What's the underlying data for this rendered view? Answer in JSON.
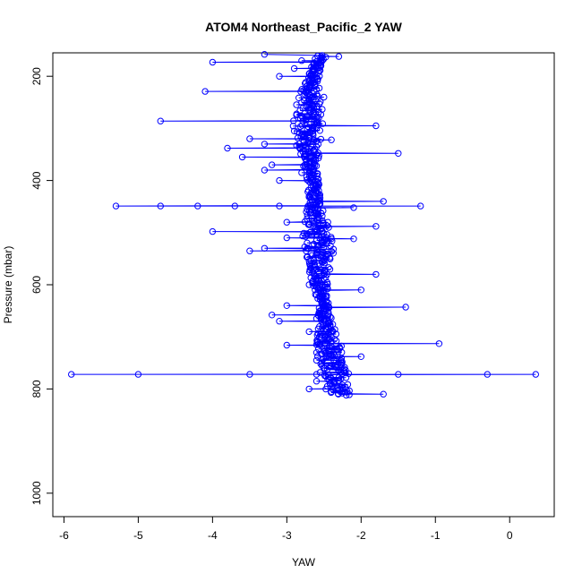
{
  "chart_data": {
    "type": "scatter",
    "title": "ATOM4 Northeast_Pacific_2 YAW",
    "xlabel": "YAW",
    "ylabel": "Pressure (mbar)",
    "xlim": [
      -6.15,
      0.6
    ],
    "ylim": [
      1045,
      155
    ],
    "y_reversed": true,
    "grid": false,
    "x_ticks": [
      -6,
      -5,
      -4,
      -3,
      -2,
      -1,
      0
    ],
    "y_ticks": [
      200,
      400,
      600,
      800,
      1000
    ],
    "color": "#0000ff",
    "series": [
      {
        "style": "line+circle-markers",
        "points": [
          [
            -2.3,
            162
          ],
          [
            -3.3,
            158
          ],
          [
            -4.0,
            173
          ],
          [
            -2.8,
            170
          ],
          [
            -2.6,
            180
          ],
          [
            -2.9,
            185
          ],
          [
            -4.1,
            229
          ],
          [
            -3.1,
            200
          ],
          [
            -2.7,
            210
          ],
          [
            -2.6,
            225
          ],
          [
            -2.5,
            240
          ],
          [
            -2.7,
            255
          ],
          [
            -4.7,
            286
          ],
          [
            -2.6,
            286
          ],
          [
            -1.8,
            295
          ],
          [
            -2.6,
            300
          ],
          [
            -2.9,
            305
          ],
          [
            -2.7,
            318
          ],
          [
            -3.5,
            320
          ],
          [
            -2.4,
            322
          ],
          [
            -3.3,
            330
          ],
          [
            -2.6,
            335
          ],
          [
            -3.8,
            338
          ],
          [
            -2.7,
            345
          ],
          [
            -1.5,
            348
          ],
          [
            -2.6,
            350
          ],
          [
            -3.6,
            355
          ],
          [
            -3.2,
            370
          ],
          [
            -2.6,
            372
          ],
          [
            -3.3,
            380
          ],
          [
            -2.8,
            385
          ],
          [
            -3.1,
            400
          ],
          [
            -2.6,
            410
          ],
          [
            -2.7,
            430
          ],
          [
            -1.7,
            440
          ],
          [
            -2.6,
            445
          ],
          [
            -5.3,
            449
          ],
          [
            -4.7,
            449
          ],
          [
            -4.2,
            449
          ],
          [
            -3.7,
            449
          ],
          [
            -3.1,
            449
          ],
          [
            -2.6,
            450
          ],
          [
            -1.2,
            449
          ],
          [
            -2.1,
            452
          ],
          [
            -2.6,
            462
          ],
          [
            -3.0,
            480
          ],
          [
            -2.7,
            485
          ],
          [
            -1.8,
            488
          ],
          [
            -2.6,
            495
          ],
          [
            -4.0,
            498
          ],
          [
            -2.5,
            502
          ],
          [
            -3.0,
            510
          ],
          [
            -2.1,
            512
          ],
          [
            -2.6,
            515
          ],
          [
            -3.3,
            530
          ],
          [
            -3.5,
            535
          ],
          [
            -2.6,
            540
          ],
          [
            -2.5,
            555
          ],
          [
            -2.6,
            570
          ],
          [
            -1.8,
            580
          ],
          [
            -2.5,
            588
          ],
          [
            -2.7,
            600
          ],
          [
            -2.0,
            610
          ],
          [
            -2.6,
            620
          ],
          [
            -3.0,
            640
          ],
          [
            -1.4,
            643
          ],
          [
            -2.5,
            645
          ],
          [
            -3.2,
            658
          ],
          [
            -2.6,
            665
          ],
          [
            -3.1,
            670
          ],
          [
            -2.7,
            690
          ],
          [
            -2.4,
            700
          ],
          [
            -0.95,
            713
          ],
          [
            -2.6,
            715
          ],
          [
            -3.0,
            716
          ],
          [
            -2.5,
            722
          ],
          [
            -2.6,
            730
          ],
          [
            -2.4,
            735
          ],
          [
            -2.0,
            738
          ],
          [
            -2.6,
            745
          ],
          [
            -2.5,
            760
          ],
          [
            -5.9,
            772
          ],
          [
            -5.0,
            772
          ],
          [
            -3.5,
            772
          ],
          [
            -2.6,
            772
          ],
          [
            -1.5,
            772
          ],
          [
            -0.3,
            772
          ],
          [
            0.35,
            772
          ],
          [
            -2.3,
            778
          ],
          [
            -2.6,
            785
          ],
          [
            -2.7,
            800
          ],
          [
            -2.4,
            805
          ],
          [
            -1.7,
            810
          ],
          [
            -2.2,
            812
          ]
        ]
      }
    ],
    "dense_band": [
      [
        160,
        -2.55
      ],
      [
        200,
        -2.65
      ],
      [
        250,
        -2.7
      ],
      [
        300,
        -2.72
      ],
      [
        350,
        -2.7
      ],
      [
        400,
        -2.65
      ],
      [
        450,
        -2.62
      ],
      [
        500,
        -2.6
      ],
      [
        550,
        -2.55
      ],
      [
        600,
        -2.55
      ],
      [
        650,
        -2.5
      ],
      [
        700,
        -2.45
      ],
      [
        740,
        -2.4
      ],
      [
        780,
        -2.35
      ],
      [
        810,
        -2.3
      ]
    ]
  }
}
